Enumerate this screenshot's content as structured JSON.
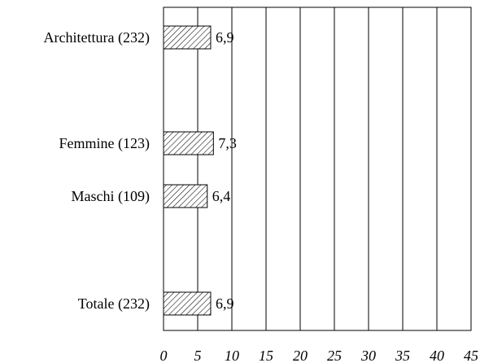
{
  "chart_data": {
    "type": "bar",
    "orientation": "horizontal",
    "categories": [
      "Architettura (232)",
      "Femmine (123)",
      "Maschi (109)",
      "Totale (232)"
    ],
    "values": [
      6.9,
      7.3,
      6.4,
      6.9
    ],
    "value_labels": [
      "6,9",
      "7,3",
      "6,4",
      "6,9"
    ],
    "xlim": [
      0,
      45
    ],
    "xticks": [
      0,
      5,
      10,
      15,
      20,
      25,
      30,
      35,
      40,
      45
    ],
    "xtick_labels": [
      "0",
      "5",
      "10",
      "15",
      "20",
      "25",
      "30",
      "35",
      "40",
      "45"
    ],
    "grid": "vertical",
    "bar_fill": "hatched",
    "colors": {
      "bar_stroke": "#000000",
      "hatch": "#000000",
      "grid": "#000000"
    }
  }
}
